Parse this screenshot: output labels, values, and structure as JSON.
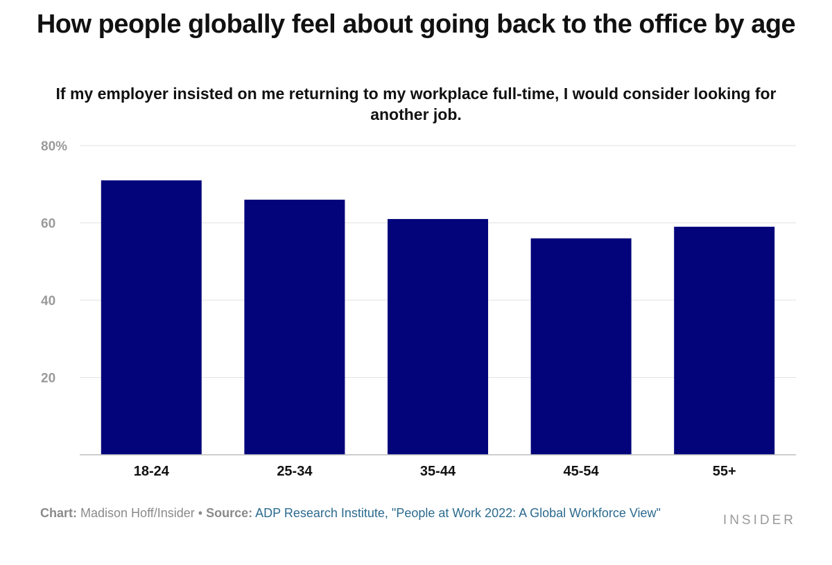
{
  "header": {
    "title": "How people globally feel about going back to the office by age",
    "subtitle": "If my employer insisted on me returning to my workplace full-time, I would consider looking for another job."
  },
  "chart_data": {
    "type": "bar",
    "categories": [
      "18-24",
      "25-34",
      "35-44",
      "45-54",
      "55+"
    ],
    "values": [
      71,
      66,
      61,
      56,
      59
    ],
    "ylim": [
      0,
      80
    ],
    "yticks": [
      20,
      40,
      60,
      80
    ],
    "ytick_labels": [
      "20",
      "40",
      "60",
      "80%"
    ],
    "grid": true,
    "bar_color": "#03037a",
    "xlabel": "",
    "ylabel": ""
  },
  "footer": {
    "chart_label": "Chart:",
    "chart_credit": "Madison Hoff/Insider",
    "separator": "•",
    "source_label": "Source:",
    "source_text": "ADP Research Institute, \"People at Work 2022: A Global Workforce View\""
  },
  "brand": "INSIDER",
  "colors": {
    "bar": "#03037a",
    "grid": "#e2e2e2",
    "axis": "#bdbdbd",
    "tick_text": "#9a9a9a",
    "source_link": "#2b6a8f"
  }
}
